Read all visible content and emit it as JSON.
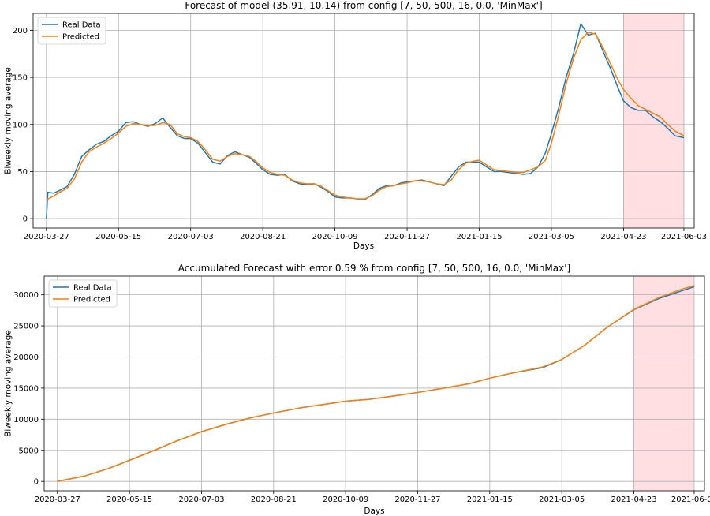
{
  "colors": {
    "real": "#1f77b4",
    "pred": "#ff7f0e",
    "shade": "#ffdfe2",
    "grid": "#b0b0b0"
  },
  "chart_data": [
    {
      "type": "line",
      "title": "Forecast of model (35.91, 10.14) from config [7, 50, 500, 16, 0.0, 'MinMax']",
      "xlabel": "Days",
      "ylabel": "Biweekly moving average",
      "x_ticks": [
        "2020-03-27",
        "2020-05-15",
        "2020-07-03",
        "2020-08-21",
        "2020-10-09",
        "2020-11-27",
        "2021-01-15",
        "2021-03-05",
        "2021-04-23",
        "2021-06-03"
      ],
      "y_ticks": [
        0,
        50,
        100,
        150,
        200
      ],
      "ylim": [
        -10,
        218
      ],
      "xlim": [
        "2020-03-18",
        "2021-06-10"
      ],
      "grid": true,
      "legend": "top-left",
      "forecast_window": [
        "2021-04-23",
        "2021-06-03"
      ],
      "series": [
        {
          "name": "Real Data",
          "color": "#1f77b4",
          "points": [
            [
              "2020-03-27",
              0
            ],
            [
              "2020-03-28",
              28
            ],
            [
              "2020-04-01",
              27
            ],
            [
              "2020-04-05",
              30
            ],
            [
              "2020-04-10",
              34
            ],
            [
              "2020-04-15",
              47
            ],
            [
              "2020-04-20",
              66
            ],
            [
              "2020-04-25",
              73
            ],
            [
              "2020-04-30",
              79
            ],
            [
              "2020-05-05",
              82
            ],
            [
              "2020-05-10",
              88
            ],
            [
              "2020-05-15",
              93
            ],
            [
              "2020-05-20",
              102
            ],
            [
              "2020-05-25",
              103
            ],
            [
              "2020-05-30",
              100
            ],
            [
              "2020-06-04",
              98
            ],
            [
              "2020-06-09",
              101
            ],
            [
              "2020-06-14",
              107
            ],
            [
              "2020-06-19",
              97
            ],
            [
              "2020-06-24",
              88
            ],
            [
              "2020-06-29",
              85
            ],
            [
              "2020-07-03",
              85
            ],
            [
              "2020-07-08",
              80
            ],
            [
              "2020-07-13",
              70
            ],
            [
              "2020-07-18",
              60
            ],
            [
              "2020-07-23",
              58
            ],
            [
              "2020-07-28",
              67
            ],
            [
              "2020-08-02",
              71
            ],
            [
              "2020-08-07",
              68
            ],
            [
              "2020-08-12",
              65
            ],
            [
              "2020-08-17",
              58
            ],
            [
              "2020-08-21",
              52
            ],
            [
              "2020-08-26",
              47
            ],
            [
              "2020-08-31",
              46
            ],
            [
              "2020-09-05",
              47
            ],
            [
              "2020-09-10",
              40
            ],
            [
              "2020-09-15",
              37
            ],
            [
              "2020-09-20",
              36
            ],
            [
              "2020-09-25",
              37
            ],
            [
              "2020-09-30",
              33
            ],
            [
              "2020-10-05",
              28
            ],
            [
              "2020-10-09",
              23
            ],
            [
              "2020-10-14",
              22
            ],
            [
              "2020-10-19",
              22
            ],
            [
              "2020-10-24",
              21
            ],
            [
              "2020-10-29",
              20
            ],
            [
              "2020-11-03",
              25
            ],
            [
              "2020-11-08",
              32
            ],
            [
              "2020-11-13",
              35
            ],
            [
              "2020-11-18",
              35
            ],
            [
              "2020-11-23",
              38
            ],
            [
              "2020-11-27",
              39
            ],
            [
              "2020-12-02",
              40
            ],
            [
              "2020-12-07",
              41
            ],
            [
              "2020-12-12",
              39
            ],
            [
              "2020-12-17",
              37
            ],
            [
              "2020-12-22",
              35
            ],
            [
              "2020-12-27",
              45
            ],
            [
              "2021-01-01",
              55
            ],
            [
              "2021-01-06",
              60
            ],
            [
              "2021-01-11",
              60
            ],
            [
              "2021-01-15",
              60
            ],
            [
              "2021-01-20",
              55
            ],
            [
              "2021-01-25",
              50
            ],
            [
              "2021-01-30",
              50
            ],
            [
              "2021-02-04",
              49
            ],
            [
              "2021-02-09",
              48
            ],
            [
              "2021-02-14",
              47
            ],
            [
              "2021-02-19",
              48
            ],
            [
              "2021-02-24",
              55
            ],
            [
              "2021-03-01",
              70
            ],
            [
              "2021-03-05",
              90
            ],
            [
              "2021-03-10",
              118
            ],
            [
              "2021-03-15",
              150
            ],
            [
              "2021-03-20",
              175
            ],
            [
              "2021-03-25",
              207
            ],
            [
              "2021-03-30",
              195
            ],
            [
              "2021-04-04",
              197
            ],
            [
              "2021-04-09",
              178
            ],
            [
              "2021-04-14",
              160
            ],
            [
              "2021-04-19",
              140
            ],
            [
              "2021-04-23",
              125
            ],
            [
              "2021-04-28",
              118
            ],
            [
              "2021-05-03",
              115
            ],
            [
              "2021-05-08",
              115
            ],
            [
              "2021-05-13",
              108
            ],
            [
              "2021-05-18",
              103
            ],
            [
              "2021-05-23",
              96
            ],
            [
              "2021-05-28",
              88
            ],
            [
              "2021-06-03",
              86
            ]
          ]
        },
        {
          "name": "Predicted",
          "color": "#ff7f0e",
          "points": [
            [
              "2020-03-27",
              20
            ],
            [
              "2020-04-01",
              24
            ],
            [
              "2020-04-05",
              28
            ],
            [
              "2020-04-10",
              32
            ],
            [
              "2020-04-15",
              42
            ],
            [
              "2020-04-20",
              60
            ],
            [
              "2020-04-25",
              71
            ],
            [
              "2020-04-30",
              76
            ],
            [
              "2020-05-05",
              80
            ],
            [
              "2020-05-10",
              85
            ],
            [
              "2020-05-15",
              91
            ],
            [
              "2020-05-20",
              98
            ],
            [
              "2020-05-25",
              101
            ],
            [
              "2020-05-30",
              100
            ],
            [
              "2020-06-04",
              99
            ],
            [
              "2020-06-09",
              99
            ],
            [
              "2020-06-14",
              102
            ],
            [
              "2020-06-19",
              100
            ],
            [
              "2020-06-24",
              90
            ],
            [
              "2020-06-29",
              87
            ],
            [
              "2020-07-03",
              86
            ],
            [
              "2020-07-08",
              82
            ],
            [
              "2020-07-13",
              73
            ],
            [
              "2020-07-18",
              63
            ],
            [
              "2020-07-23",
              61
            ],
            [
              "2020-07-28",
              66
            ],
            [
              "2020-08-02",
              69
            ],
            [
              "2020-08-07",
              68
            ],
            [
              "2020-08-12",
              66
            ],
            [
              "2020-08-17",
              60
            ],
            [
              "2020-08-21",
              54
            ],
            [
              "2020-08-26",
              49
            ],
            [
              "2020-08-31",
              47
            ],
            [
              "2020-09-05",
              46
            ],
            [
              "2020-09-10",
              41
            ],
            [
              "2020-09-15",
              38
            ],
            [
              "2020-09-20",
              37
            ],
            [
              "2020-09-25",
              37
            ],
            [
              "2020-09-30",
              34
            ],
            [
              "2020-10-05",
              29
            ],
            [
              "2020-10-09",
              25
            ],
            [
              "2020-10-14",
              23
            ],
            [
              "2020-10-19",
              22
            ],
            [
              "2020-10-24",
              21
            ],
            [
              "2020-10-29",
              21
            ],
            [
              "2020-11-03",
              24
            ],
            [
              "2020-11-08",
              30
            ],
            [
              "2020-11-13",
              34
            ],
            [
              "2020-11-18",
              35
            ],
            [
              "2020-11-23",
              37
            ],
            [
              "2020-11-27",
              38
            ],
            [
              "2020-12-02",
              40
            ],
            [
              "2020-12-07",
              40
            ],
            [
              "2020-12-12",
              39
            ],
            [
              "2020-12-17",
              37
            ],
            [
              "2020-12-22",
              36
            ],
            [
              "2020-12-27",
              41
            ],
            [
              "2021-01-01",
              52
            ],
            [
              "2021-01-06",
              59
            ],
            [
              "2021-01-11",
              61
            ],
            [
              "2021-01-15",
              62
            ],
            [
              "2021-01-20",
              57
            ],
            [
              "2021-01-25",
              52
            ],
            [
              "2021-01-30",
              51
            ],
            [
              "2021-02-04",
              50
            ],
            [
              "2021-02-09",
              49
            ],
            [
              "2021-02-14",
              49
            ],
            [
              "2021-02-19",
              52
            ],
            [
              "2021-02-24",
              55
            ],
            [
              "2021-03-01",
              62
            ],
            [
              "2021-03-05",
              80
            ],
            [
              "2021-03-10",
              110
            ],
            [
              "2021-03-15",
              143
            ],
            [
              "2021-03-20",
              170
            ],
            [
              "2021-03-25",
              190
            ],
            [
              "2021-03-30",
              198
            ],
            [
              "2021-04-04",
              196
            ],
            [
              "2021-04-09",
              182
            ],
            [
              "2021-04-14",
              165
            ],
            [
              "2021-04-19",
              148
            ],
            [
              "2021-04-23",
              137
            ],
            [
              "2021-04-28",
              128
            ],
            [
              "2021-05-03",
              120
            ],
            [
              "2021-05-08",
              116
            ],
            [
              "2021-05-13",
              112
            ],
            [
              "2021-05-18",
              108
            ],
            [
              "2021-05-23",
              100
            ],
            [
              "2021-05-28",
              93
            ],
            [
              "2021-06-03",
              88
            ]
          ]
        }
      ]
    },
    {
      "type": "line",
      "title": "Accumulated Forecast with error 0.59 % from config [7, 50, 500, 16, 0.0, 'MinMax']",
      "xlabel": "Days",
      "ylabel": "Biweekly moving average",
      "x_ticks": [
        "2020-03-27",
        "2020-05-15",
        "2020-07-03",
        "2020-08-21",
        "2020-10-09",
        "2020-11-27",
        "2021-01-15",
        "2021-03-05",
        "2021-04-23",
        "2021-06-03"
      ],
      "y_ticks": [
        0,
        5000,
        10000,
        15000,
        20000,
        25000,
        30000
      ],
      "ylim": [
        -1500,
        33000
      ],
      "xlim": [
        "2020-03-18",
        "2021-06-10"
      ],
      "grid": true,
      "legend": "top-left",
      "forecast_window": [
        "2021-04-23",
        "2021-06-03"
      ],
      "series": [
        {
          "name": "Real Data",
          "color": "#1f77b4",
          "points": [
            [
              "2020-03-27",
              0
            ],
            [
              "2020-04-15",
              900
            ],
            [
              "2020-05-01",
              2100
            ],
            [
              "2020-05-15",
              3400
            ],
            [
              "2020-06-01",
              5000
            ],
            [
              "2020-06-15",
              6400
            ],
            [
              "2020-07-03",
              8000
            ],
            [
              "2020-07-20",
              9200
            ],
            [
              "2020-08-05",
              10200
            ],
            [
              "2020-08-21",
              11000
            ],
            [
              "2020-09-10",
              11900
            ],
            [
              "2020-09-25",
              12400
            ],
            [
              "2020-10-09",
              12900
            ],
            [
              "2020-10-25",
              13200
            ],
            [
              "2020-11-10",
              13700
            ],
            [
              "2020-11-27",
              14300
            ],
            [
              "2020-12-15",
              15000
            ],
            [
              "2021-01-01",
              15700
            ],
            [
              "2021-01-15",
              16600
            ],
            [
              "2021-02-01",
              17500
            ],
            [
              "2021-02-20",
              18300
            ],
            [
              "2021-03-05",
              19600
            ],
            [
              "2021-03-20",
              21800
            ],
            [
              "2021-04-05",
              24800
            ],
            [
              "2021-04-23",
              27600
            ],
            [
              "2021-05-10",
              29400
            ],
            [
              "2021-05-25",
              30600
            ],
            [
              "2021-06-03",
              31300
            ]
          ]
        },
        {
          "name": "Predicted",
          "color": "#ff7f0e",
          "points": [
            [
              "2020-03-27",
              0
            ],
            [
              "2020-04-15",
              900
            ],
            [
              "2020-05-01",
              2100
            ],
            [
              "2020-05-15",
              3400
            ],
            [
              "2020-06-01",
              5000
            ],
            [
              "2020-06-15",
              6400
            ],
            [
              "2020-07-03",
              8000
            ],
            [
              "2020-07-20",
              9200
            ],
            [
              "2020-08-05",
              10200
            ],
            [
              "2020-08-21",
              11000
            ],
            [
              "2020-09-10",
              11900
            ],
            [
              "2020-09-25",
              12400
            ],
            [
              "2020-10-09",
              12900
            ],
            [
              "2020-10-25",
              13200
            ],
            [
              "2020-11-10",
              13700
            ],
            [
              "2020-11-27",
              14300
            ],
            [
              "2020-12-15",
              15000
            ],
            [
              "2021-01-01",
              15700
            ],
            [
              "2021-01-15",
              16600
            ],
            [
              "2021-02-01",
              17500
            ],
            [
              "2021-02-20",
              18400
            ],
            [
              "2021-03-05",
              19600
            ],
            [
              "2021-03-20",
              21800
            ],
            [
              "2021-04-05",
              24800
            ],
            [
              "2021-04-23",
              27650
            ],
            [
              "2021-05-10",
              29550
            ],
            [
              "2021-05-25",
              30850
            ],
            [
              "2021-06-03",
              31500
            ]
          ]
        }
      ]
    }
  ]
}
